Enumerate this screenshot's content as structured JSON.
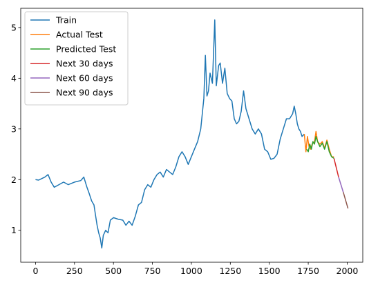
{
  "chart_data": {
    "type": "line",
    "title": "",
    "xlabel": "",
    "ylabel": "",
    "xlim": [
      -95,
      2100
    ],
    "ylim": [
      0.37,
      5.38
    ],
    "x_ticks": [
      0,
      250,
      500,
      750,
      1000,
      1250,
      1500,
      1750,
      2000
    ],
    "y_ticks": [
      1,
      2,
      3,
      4,
      5
    ],
    "grid": false,
    "legend_position": "top-left",
    "series": [
      {
        "name": "Train",
        "color": "#1f77b4",
        "points": [
          [
            0,
            2.0
          ],
          [
            20,
            1.99
          ],
          [
            40,
            2.02
          ],
          [
            60,
            2.05
          ],
          [
            80,
            2.1
          ],
          [
            100,
            1.95
          ],
          [
            120,
            1.85
          ],
          [
            150,
            1.9
          ],
          [
            180,
            1.95
          ],
          [
            210,
            1.9
          ],
          [
            250,
            1.95
          ],
          [
            290,
            1.98
          ],
          [
            310,
            2.05
          ],
          [
            330,
            1.85
          ],
          [
            345,
            1.72
          ],
          [
            360,
            1.58
          ],
          [
            375,
            1.5
          ],
          [
            385,
            1.3
          ],
          [
            395,
            1.1
          ],
          [
            405,
            0.95
          ],
          [
            415,
            0.85
          ],
          [
            425,
            0.65
          ],
          [
            435,
            0.9
          ],
          [
            450,
            1.0
          ],
          [
            465,
            0.95
          ],
          [
            480,
            1.2
          ],
          [
            500,
            1.25
          ],
          [
            530,
            1.22
          ],
          [
            560,
            1.2
          ],
          [
            580,
            1.1
          ],
          [
            600,
            1.18
          ],
          [
            620,
            1.1
          ],
          [
            640,
            1.28
          ],
          [
            660,
            1.5
          ],
          [
            680,
            1.55
          ],
          [
            700,
            1.8
          ],
          [
            720,
            1.9
          ],
          [
            740,
            1.85
          ],
          [
            760,
            2.0
          ],
          [
            780,
            2.1
          ],
          [
            800,
            2.15
          ],
          [
            820,
            2.05
          ],
          [
            840,
            2.2
          ],
          [
            860,
            2.15
          ],
          [
            880,
            2.1
          ],
          [
            900,
            2.25
          ],
          [
            920,
            2.45
          ],
          [
            940,
            2.55
          ],
          [
            960,
            2.45
          ],
          [
            980,
            2.3
          ],
          [
            1000,
            2.45
          ],
          [
            1020,
            2.6
          ],
          [
            1040,
            2.75
          ],
          [
            1060,
            3.0
          ],
          [
            1080,
            3.6
          ],
          [
            1090,
            4.45
          ],
          [
            1100,
            3.65
          ],
          [
            1110,
            3.75
          ],
          [
            1120,
            4.1
          ],
          [
            1135,
            3.9
          ],
          [
            1150,
            5.15
          ],
          [
            1160,
            3.85
          ],
          [
            1175,
            4.25
          ],
          [
            1185,
            4.3
          ],
          [
            1200,
            3.9
          ],
          [
            1215,
            4.2
          ],
          [
            1230,
            3.7
          ],
          [
            1245,
            3.6
          ],
          [
            1260,
            3.55
          ],
          [
            1275,
            3.2
          ],
          [
            1290,
            3.1
          ],
          [
            1305,
            3.15
          ],
          [
            1320,
            3.35
          ],
          [
            1335,
            3.75
          ],
          [
            1350,
            3.4
          ],
          [
            1370,
            3.2
          ],
          [
            1390,
            3.0
          ],
          [
            1410,
            2.9
          ],
          [
            1430,
            3.0
          ],
          [
            1450,
            2.9
          ],
          [
            1470,
            2.6
          ],
          [
            1490,
            2.55
          ],
          [
            1510,
            2.4
          ],
          [
            1530,
            2.42
          ],
          [
            1550,
            2.5
          ],
          [
            1570,
            2.8
          ],
          [
            1590,
            3.0
          ],
          [
            1610,
            3.2
          ],
          [
            1630,
            3.2
          ],
          [
            1650,
            3.3
          ],
          [
            1660,
            3.45
          ],
          [
            1670,
            3.3
          ],
          [
            1680,
            3.1
          ],
          [
            1690,
            3.0
          ],
          [
            1700,
            2.95
          ],
          [
            1710,
            2.85
          ],
          [
            1725,
            2.9
          ]
        ]
      },
      {
        "name": "Actual Test",
        "color": "#ff7f0e",
        "points": [
          [
            1725,
            2.9
          ],
          [
            1735,
            2.55
          ],
          [
            1745,
            2.85
          ],
          [
            1755,
            2.65
          ],
          [
            1765,
            2.6
          ],
          [
            1775,
            2.7
          ],
          [
            1790,
            2.75
          ],
          [
            1800,
            2.95
          ],
          [
            1810,
            2.75
          ],
          [
            1825,
            2.7
          ],
          [
            1840,
            2.75
          ],
          [
            1855,
            2.62
          ],
          [
            1870,
            2.78
          ],
          [
            1885,
            2.6
          ],
          [
            1900,
            2.45
          ],
          [
            1915,
            2.45
          ]
        ]
      },
      {
        "name": "Predicted Test",
        "color": "#2ca02c",
        "points": [
          [
            1740,
            2.6
          ],
          [
            1750,
            2.55
          ],
          [
            1760,
            2.7
          ],
          [
            1770,
            2.6
          ],
          [
            1780,
            2.75
          ],
          [
            1790,
            2.7
          ],
          [
            1800,
            2.85
          ],
          [
            1810,
            2.75
          ],
          [
            1825,
            2.65
          ],
          [
            1840,
            2.72
          ],
          [
            1855,
            2.6
          ],
          [
            1870,
            2.75
          ],
          [
            1885,
            2.55
          ],
          [
            1900,
            2.45
          ],
          [
            1915,
            2.42
          ]
        ]
      },
      {
        "name": "Next 30 days",
        "color": "#d62728",
        "points": [
          [
            1915,
            2.42
          ],
          [
            1945,
            2.05
          ]
        ]
      },
      {
        "name": "Next 60 days",
        "color": "#9467bd",
        "points": [
          [
            1945,
            2.05
          ],
          [
            1975,
            1.75
          ]
        ]
      },
      {
        "name": "Next 90 days",
        "color": "#8c564b",
        "points": [
          [
            1975,
            1.75
          ],
          [
            2005,
            1.43
          ]
        ]
      }
    ]
  }
}
